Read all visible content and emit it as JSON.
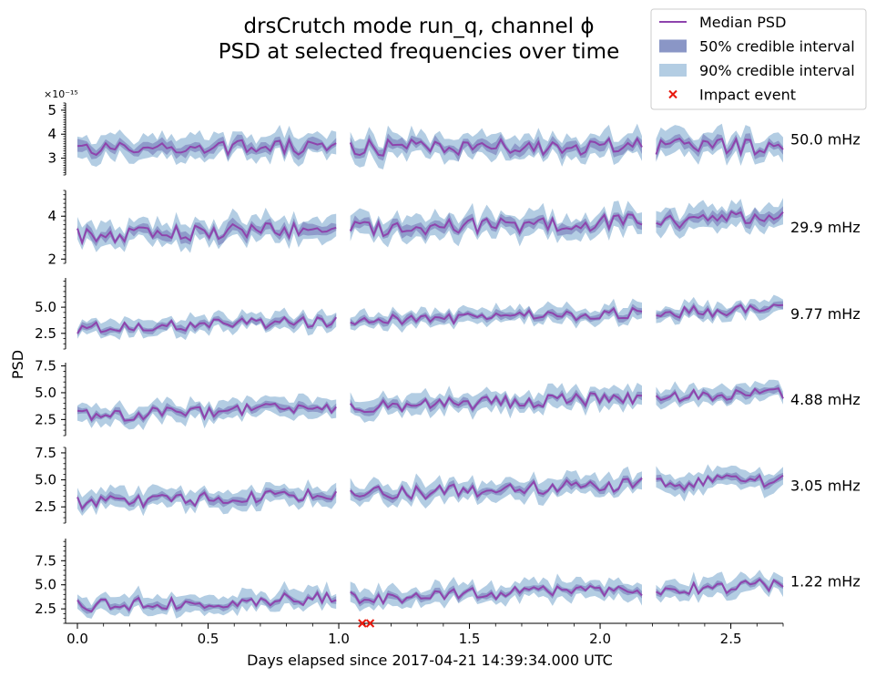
{
  "chart_data": {
    "type": "area",
    "title": [
      "drsCrutch mode run_q, channel ϕ",
      "PSD at selected frequencies over time"
    ],
    "xlabel": "Days elapsed since 2017-04-21 14:39:34.000 UTC",
    "ylabel": "PSD",
    "xlim": [
      0,
      2.7
    ],
    "x_ticks": [
      "0.0",
      "0.5",
      "1.0",
      "1.5",
      "2.0",
      "2.5"
    ],
    "offset_label": "×10⁻¹⁵",
    "data_gaps_days": [
      [
        1.0,
        1.04
      ],
      [
        2.16,
        2.2
      ]
    ],
    "legend": {
      "position": "top-right",
      "entries": [
        {
          "label": "Median PSD",
          "kind": "line",
          "color": "#8e44ad"
        },
        {
          "label": "50% credible interval",
          "kind": "patch",
          "color": "#8a96c6"
        },
        {
          "label": "90% credible interval",
          "kind": "patch",
          "color": "#b3cde3"
        },
        {
          "label": "Impact event",
          "kind": "marker",
          "color": "#e8190e"
        }
      ]
    },
    "impact_events_days": [
      1.09,
      1.12
    ],
    "series": [
      {
        "name": "50.0 mHz",
        "ylim": [
          2.3,
          5.3
        ],
        "yticks": [
          3,
          4,
          5
        ],
        "ytick_labels": [
          "3",
          "4",
          "5"
        ],
        "median_start": 3.4,
        "median_end": 3.5,
        "ci90_halfwidth": 0.45,
        "ci50_halfwidth": 0.2
      },
      {
        "name": "29.9 mHz",
        "ylim": [
          1.8,
          5.2
        ],
        "yticks": [
          2,
          4
        ],
        "ytick_labels": [
          "2",
          "4"
        ],
        "median_start": 3.1,
        "median_end": 3.9,
        "ci90_halfwidth": 0.5,
        "ci50_halfwidth": 0.22
      },
      {
        "name": "9.77 mHz",
        "ylim": [
          1.0,
          7.8
        ],
        "yticks": [
          2.5,
          5.0
        ],
        "ytick_labels": [
          "2.5",
          "5.0"
        ],
        "median_start": 3.0,
        "median_end": 4.8,
        "ci90_halfwidth": 0.7,
        "ci50_halfwidth": 0.3
      },
      {
        "name": "4.88 mHz",
        "ylim": [
          1.0,
          7.8
        ],
        "yticks": [
          2.5,
          5.0,
          7.5
        ],
        "ytick_labels": [
          "2.5",
          "5.0",
          "7.5"
        ],
        "median_start": 2.8,
        "median_end": 5.0,
        "ci90_halfwidth": 0.8,
        "ci50_halfwidth": 0.3
      },
      {
        "name": "3.05 mHz",
        "ylim": [
          1.0,
          8.0
        ],
        "yticks": [
          2.5,
          5.0,
          7.5
        ],
        "ytick_labels": [
          "2.5",
          "5.0",
          "7.5"
        ],
        "median_start": 2.8,
        "median_end": 5.0,
        "ci90_halfwidth": 0.85,
        "ci50_halfwidth": 0.3
      },
      {
        "name": "1.22 mHz",
        "ylim": [
          1.0,
          9.8
        ],
        "yticks": [
          2.5,
          5.0,
          7.5
        ],
        "ytick_labels": [
          "2.5",
          "5.0",
          "7.5"
        ],
        "median_start": 2.8,
        "median_end": 5.0,
        "ci90_halfwidth": 0.9,
        "ci50_halfwidth": 0.3
      }
    ]
  }
}
